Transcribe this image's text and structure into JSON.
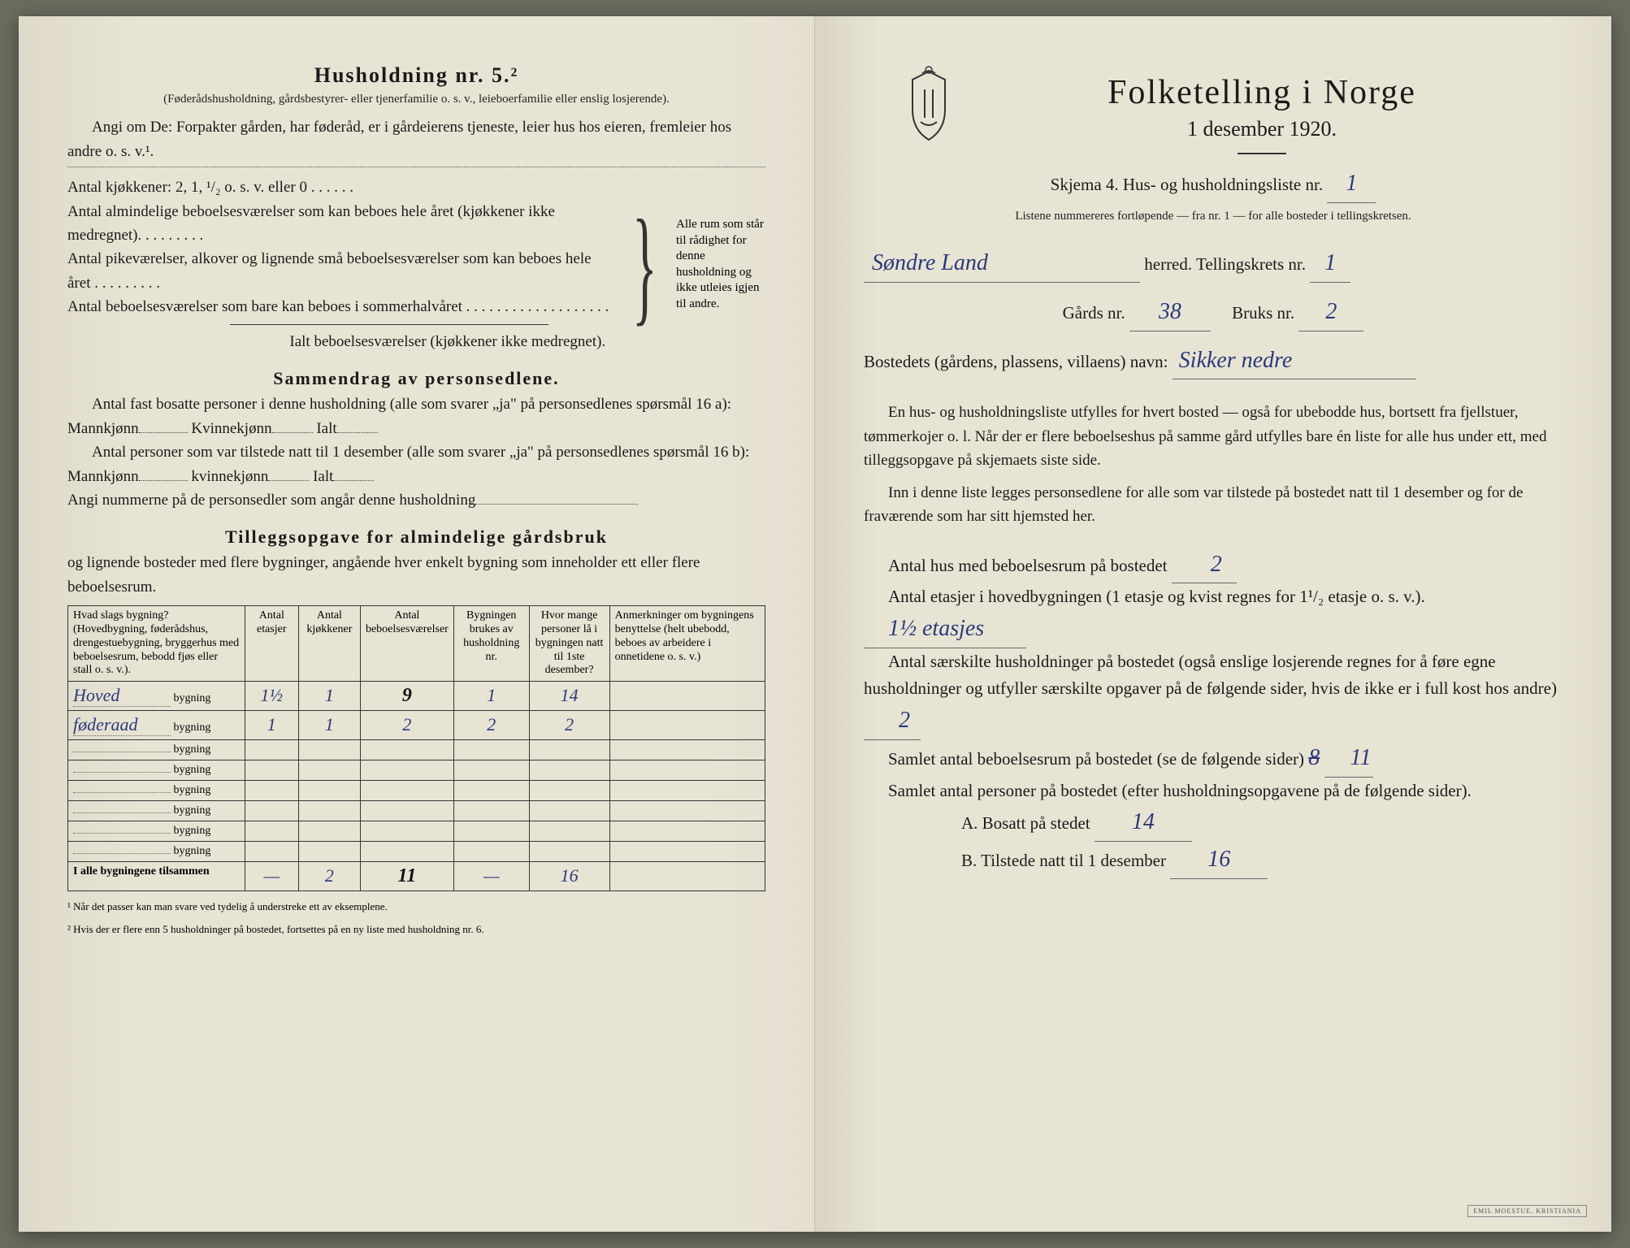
{
  "left": {
    "heading": "Husholdning nr. 5.²",
    "sub1": "(Føderådshusholdning, gårdsbestyrer- eller tjenerfamilie o. s. v., leieboerfamilie eller enslig losjerende).",
    "line1": "Angi om De: Forpakter gården, har føderåd, er i gårdeierens tjeneste, leier hus hos eieren, fremleier hos andre o. s. v.¹.",
    "kjokkener": "Antal kjøkkener: 2, 1, ¹/₂ o. s. v. eller 0 . . . . . .",
    "almind": "Antal almindelige beboelsesværelser som kan beboes hele året (kjøkkener ikke medregnet). . . . . . . . .",
    "pike": "Antal pikeværelser, alkover og lignende små beboelsesværelser som kan beboes hele året . . . . . . . . .",
    "sommer": "Antal beboelsesværelser som bare kan beboes i sommerhalvåret . . . . . . . . . . . . . . . . . . .",
    "ialt": "Ialt beboelsesværelser (kjøkkener ikke medregnet).",
    "brace_text": "Alle rum som står til rådighet for denne husholdning og ikke utleies igjen til andre.",
    "sammendrag": "Sammendrag av personsedlene.",
    "s_line1a": "Antal fast bosatte personer i denne husholdning (alle som svarer „ja\" på personsedlenes spørsmål 16 a): Mannkjønn",
    "s_kv": "Kvinnekjønn",
    "s_ialt": "Ialt",
    "s_line2a": "Antal personer som var tilstede natt til 1 desember (alle som svarer „ja\" på personsedlenes spørsmål 16 b): Mannkjønn",
    "s_kv2": "kvinnekjønn",
    "s_line3": "Angi nummerne på de personsedler som angår denne husholdning",
    "tillegg_h": "Tilleggsopgave for almindelige gårdsbruk",
    "tillegg_sub": "og lignende bosteder med flere bygninger, angående hver enkelt bygning som inneholder ett eller flere beboelsesrum.",
    "table": {
      "headers": [
        "Hvad slags bygning?\n(Hovedbygning, føderådshus, drengestuebygning, bryggerhus med beboelsesrum, bebodd fjøs eller stall o. s. v.).",
        "Antal etasjer",
        "Antal kjøkkener",
        "Antal beboelsesværelser",
        "Bygningen brukes av husholdning nr.",
        "Hvor mange personer lå i bygningen natt til 1ste desember?",
        "Anmerkninger om bygningens benyttelse (helt ubebodd, beboes av arbeidere i onnetidene o. s. v.)"
      ],
      "rows": [
        {
          "label_hand": "Hoved",
          "suffix": "bygning",
          "cells": [
            "1½",
            "1",
            "9",
            "1",
            "14",
            ""
          ],
          "heavy_col": 3
        },
        {
          "label_hand": "føderaad",
          "suffix": "bygning",
          "cells": [
            "1",
            "1",
            "2",
            "2",
            "2",
            ""
          ]
        },
        {
          "label_hand": "",
          "suffix": "bygning",
          "cells": [
            "",
            "",
            "",
            "",
            "",
            ""
          ]
        },
        {
          "label_hand": "",
          "suffix": "bygning",
          "cells": [
            "",
            "",
            "",
            "",
            "",
            ""
          ]
        },
        {
          "label_hand": "",
          "suffix": "bygning",
          "cells": [
            "",
            "",
            "",
            "",
            "",
            ""
          ]
        },
        {
          "label_hand": "",
          "suffix": "bygning",
          "cells": [
            "",
            "",
            "",
            "",
            "",
            ""
          ]
        },
        {
          "label_hand": "",
          "suffix": "bygning",
          "cells": [
            "",
            "",
            "",
            "",
            "",
            ""
          ]
        },
        {
          "label_hand": "",
          "suffix": "bygning",
          "cells": [
            "",
            "",
            "",
            "",
            "",
            ""
          ]
        }
      ],
      "total_label": "I alle bygningene tilsammen",
      "total": [
        "—",
        "2",
        "11",
        "—",
        "16",
        ""
      ],
      "total_heavy_col": 2
    },
    "fn1": "¹ Når det passer kan man svare ved tydelig å understreke ett av eksemplene.",
    "fn2": "² Hvis der er flere enn 5 husholdninger på bostedet, fortsettes på en ny liste med husholdning nr. 6."
  },
  "right": {
    "title": "Folketelling i Norge",
    "date": "1 desember 1920.",
    "skjema": "Skjema 4.   Hus- og husholdningsliste nr.",
    "skjema_val": "1",
    "listene": "Listene nummereres fortløpende — fra nr. 1 — for alle bosteder i tellingskretsen.",
    "herred_val": "Søndre Land",
    "herred_lbl": "herred.    Tellingskrets nr.",
    "krets_val": "1",
    "gards_lbl": "Gårds nr.",
    "gards_val": "38",
    "bruks_lbl": "Bruks nr.",
    "bruks_val": "2",
    "bosted_lbl": "Bostedets (gårdens, plassens, villaens) navn:",
    "bosted_val": "Sikker nedre",
    "para1": "En hus- og husholdningsliste utfylles for hvert bosted — også for ubebodde hus, bortsett fra fjellstuer, tømmerkojer o. l. Når der er flere beboelseshus på samme gård utfylles bare én liste for alle hus under ett, med tilleggsopgave på skjemaets siste side.",
    "para2": "Inn i denne liste legges personsedlene for alle som var tilstede på bostedet natt til 1 desember og for de fraværende som har sitt hjemsted her.",
    "q1": "Antal hus med beboelsesrum på bostedet",
    "q1_val": "2",
    "q2a": "Antal etasjer i hovedbygningen (1 etasje og kvist regnes for 1¹/₂ etasje o. s. v.).",
    "q2_val": "1½ etasjes",
    "q3": "Antal særskilte husholdninger på bostedet (også enslige losjerende regnes for å føre egne husholdninger og utfyller særskilte opgaver på de følgende sider, hvis de ikke er i full kost hos andre)",
    "q3_val": "2",
    "q4": "Samlet antal beboelsesrum på bostedet (se de følgende sider)",
    "q4_strike": "8",
    "q4_val": "11",
    "q5": "Samlet antal personer på bostedet (efter husholdningsopgavene på de følgende sider).",
    "q5a": "A.  Bosatt på stedet",
    "q5a_val": "14",
    "q5b": "B.  Tilstede natt til 1 desember",
    "q5b_val": "16",
    "publisher": "EMIL MOESTUE, KRISTIANIA"
  }
}
